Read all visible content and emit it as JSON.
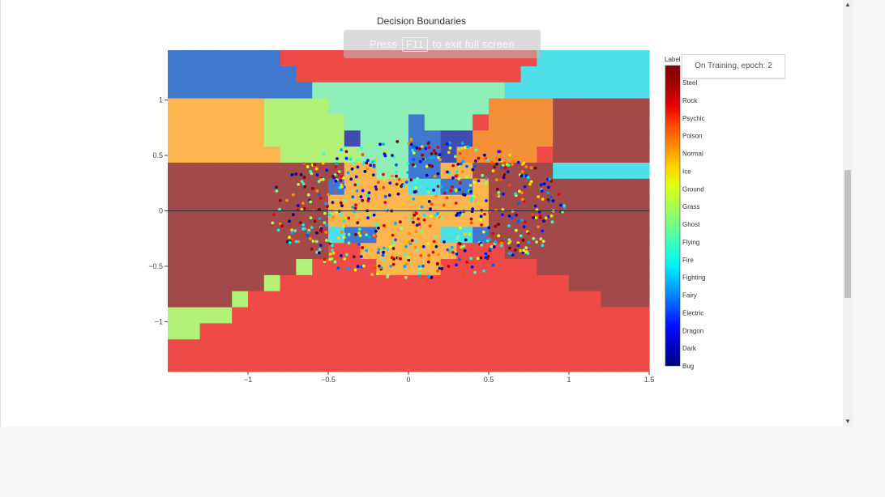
{
  "page": {
    "fullscreen_hint_prefix": "Press",
    "fullscreen_hint_key": "F11",
    "fullscreen_hint_suffix": "to exit full screen",
    "status": "On Training, epoch: 2"
  },
  "chart_data": {
    "type": "scatter",
    "title": "Decision Boundaries",
    "xlabel": "",
    "ylabel": "",
    "xlim": [
      -1.5,
      1.5
    ],
    "ylim": [
      -1.45,
      1.45
    ],
    "x_ticks": [
      -1,
      -0.5,
      0,
      0.5,
      1,
      1.5
    ],
    "x_tick_labels": [
      "−1",
      "−0.5",
      "0",
      "0.5",
      "1",
      "1.5"
    ],
    "y_ticks": [
      -1,
      -0.5,
      0,
      0.5,
      1
    ],
    "y_tick_labels": [
      "−1",
      "−0.5",
      "0",
      "0.5",
      "1"
    ],
    "grid": false,
    "colorbar": {
      "title": "Label",
      "colorscale": "jet",
      "labels": [
        "Bug",
        "Dark",
        "Dragon",
        "Electric",
        "Fairy",
        "Fighting",
        "Fire",
        "Flying",
        "Ghost",
        "Grass",
        "Ground",
        "Ice",
        "Normal",
        "Poison",
        "Psychic",
        "Rock",
        "Steel"
      ]
    },
    "colors": {
      "brown": "#a24a4a",
      "red": "#ee4a47",
      "orange": "#fdb54f",
      "lightgreen": "#b2f278",
      "cyan": "#4fdfe8",
      "blue": "#3f78cd",
      "navy": "#3f4db2",
      "seafoam": "#8ef0b8",
      "darkorange": "#f5903a"
    }
  }
}
